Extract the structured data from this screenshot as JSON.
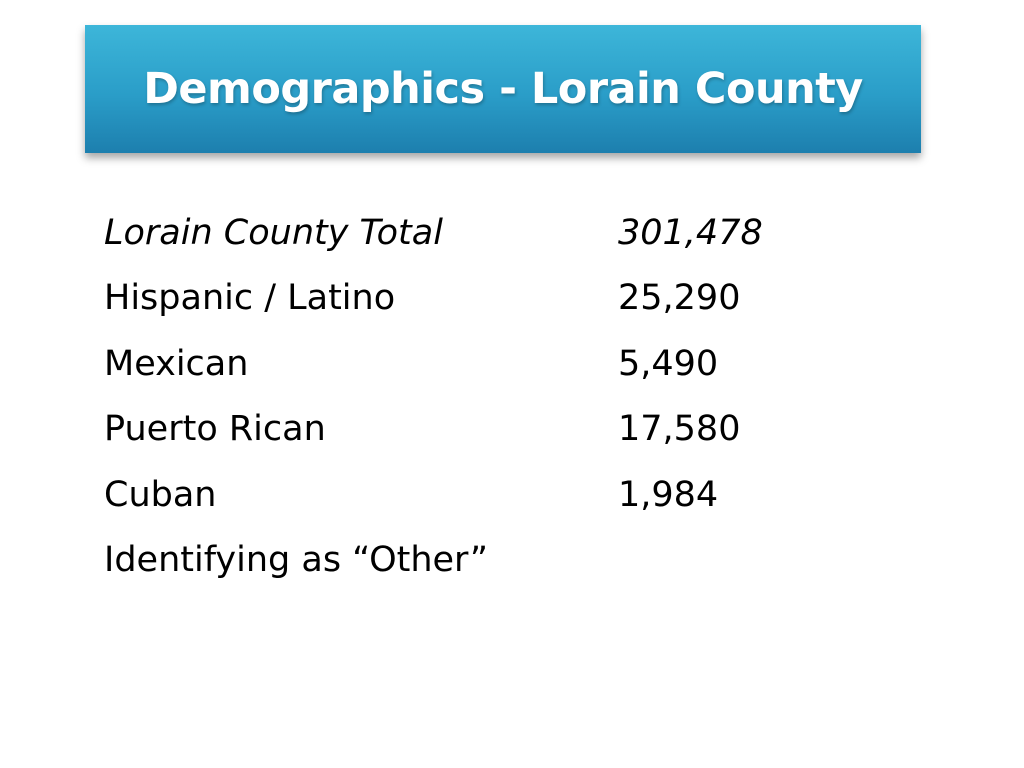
{
  "slide": {
    "title": "Demographics - Lorain County",
    "colors": {
      "banner_top": "#3db6d9",
      "banner_bottom": "#1d7fae",
      "title_text": "#ffffff",
      "body_text": "#000000",
      "background": "#ffffff"
    }
  },
  "rows": [
    {
      "label": "Lorain County Total",
      "value": "301,478",
      "italic": true
    },
    {
      "label": "Hispanic / Latino",
      "value": "25,290",
      "italic": false
    },
    {
      "label": "Mexican",
      "value": "5,490",
      "italic": false
    },
    {
      "label": "Puerto Rican",
      "value": "17,580",
      "italic": false
    },
    {
      "label": "Cuban",
      "value": "1,984",
      "italic": false
    },
    {
      "label": "Identifying as “Other”",
      "value": "",
      "italic": false
    }
  ]
}
